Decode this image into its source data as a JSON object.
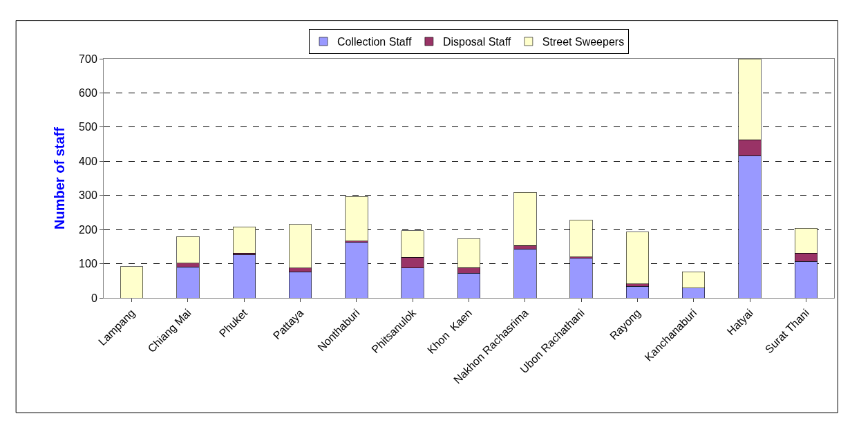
{
  "chart_data": {
    "type": "bar",
    "stacked": true,
    "ylabel": "Number of staff",
    "categories": [
      "Lampang",
      "Chiang Mai",
      "Phuket",
      "Pattaya",
      "Nonthaburi",
      "Phitsanulok",
      "Khon  Kaen",
      "Nakhon Rachasrima",
      "Ubon Rachathani",
      "Rayong",
      "Kanchanaburi",
      "Hatyai",
      "Surat Thani"
    ],
    "series": [
      {
        "name": "Collection Staff",
        "color": "#9999ff",
        "values": [
          0,
          91,
          127,
          76,
          162,
          88,
          72,
          143,
          116,
          34,
          29,
          416,
          107
        ]
      },
      {
        "name": "Disposal Staff",
        "color": "#993366",
        "values": [
          0,
          11,
          4,
          12,
          4,
          31,
          17,
          10,
          4,
          7,
          0,
          47,
          24
        ]
      },
      {
        "name": "Street Sweepers",
        "color": "#ffffcc",
        "values": [
          92,
          78,
          77,
          127,
          131,
          78,
          84,
          156,
          108,
          152,
          47,
          236,
          73
        ]
      }
    ],
    "ylim": [
      0,
      700
    ],
    "yticks": [
      0,
      100,
      200,
      300,
      400,
      500,
      600,
      700
    ],
    "grid": "y",
    "legend": "top"
  }
}
